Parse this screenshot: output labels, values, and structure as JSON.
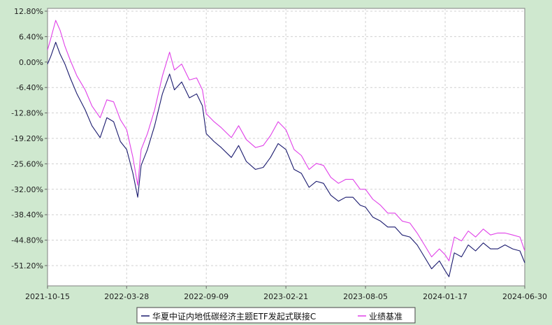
{
  "chart_data": {
    "type": "line",
    "title": "",
    "xlabel": "",
    "ylabel": "",
    "x_ticks": [
      "2021-10-15",
      "2022-03-28",
      "2022-09-09",
      "2023-02-21",
      "2023-08-05",
      "2024-01-17",
      "2024-06-30"
    ],
    "y_ticks": [
      "12.80%",
      "6.40%",
      "0.00%",
      "-6.40%",
      "-12.80%",
      "-19.20%",
      "-25.60%",
      "-32.00%",
      "-38.40%",
      "-44.80%",
      "-51.20%"
    ],
    "y_tick_values": [
      12.8,
      6.4,
      0.0,
      -6.4,
      -12.8,
      -19.2,
      -25.6,
      -32.0,
      -38.4,
      -44.8,
      -51.2
    ],
    "ylim": [
      -51.2,
      12.8
    ],
    "xlim": [
      "2021-10-15",
      "2024-06-30"
    ],
    "grid": true,
    "legend_position": "bottom-center",
    "colors": {
      "fund": "#1a1a6e",
      "benchmark": "#e040e8"
    },
    "series": [
      {
        "name": "华夏中证内地低碳经济主题ETF发起式联接C",
        "x": [
          "2021-10-15",
          "2021-10-22",
          "2021-11-01",
          "2021-11-10",
          "2021-11-20",
          "2021-12-01",
          "2021-12-15",
          "2022-01-01",
          "2022-01-15",
          "2022-02-01",
          "2022-02-15",
          "2022-03-01",
          "2022-03-15",
          "2022-03-28",
          "2022-04-10",
          "2022-04-20",
          "2022-04-27",
          "2022-05-10",
          "2022-05-25",
          "2022-06-10",
          "2022-06-25",
          "2022-07-05",
          "2022-07-20",
          "2022-08-05",
          "2022-08-20",
          "2022-09-01",
          "2022-09-09",
          "2022-09-25",
          "2022-10-10",
          "2022-10-31",
          "2022-11-15",
          "2022-12-01",
          "2022-12-20",
          "2023-01-05",
          "2023-01-20",
          "2023-02-05",
          "2023-02-21",
          "2023-03-10",
          "2023-03-25",
          "2023-04-10",
          "2023-04-25",
          "2023-05-10",
          "2023-05-25",
          "2023-06-10",
          "2023-06-25",
          "2023-07-10",
          "2023-07-25",
          "2023-08-05",
          "2023-08-20",
          "2023-09-05",
          "2023-09-20",
          "2023-10-05",
          "2023-10-20",
          "2023-11-05",
          "2023-11-20",
          "2023-12-05",
          "2023-12-20",
          "2024-01-05",
          "2024-01-17",
          "2024-01-25",
          "2024-02-05",
          "2024-02-20",
          "2024-03-05",
          "2024-03-20",
          "2024-04-05",
          "2024-04-20",
          "2024-05-05",
          "2024-05-20",
          "2024-06-05",
          "2024-06-20",
          "2024-06-30"
        ],
        "values": [
          -0.5,
          1.5,
          5.0,
          2.0,
          -0.5,
          -4.0,
          -8.0,
          -12.0,
          -16.0,
          -19.0,
          -14.0,
          -15.0,
          -20.0,
          -22.0,
          -28.0,
          -34.0,
          -26.0,
          -22.0,
          -16.0,
          -8.0,
          -3.0,
          -7.0,
          -5.0,
          -9.0,
          -8.0,
          -11.0,
          -18.0,
          -20.0,
          -21.5,
          -24.0,
          -21.0,
          -25.0,
          -27.0,
          -26.5,
          -24.0,
          -20.5,
          -22.0,
          -27.0,
          -28.0,
          -31.5,
          -30.0,
          -30.5,
          -33.5,
          -35.0,
          -34.0,
          -34.0,
          -36.0,
          -36.5,
          -39.0,
          -40.0,
          -41.5,
          -41.5,
          -43.5,
          -44.0,
          -46.0,
          -49.0,
          -52.0,
          -50.0,
          -52.5,
          -54.0,
          -48.0,
          -49.0,
          -46.0,
          -47.5,
          -45.5,
          -47.0,
          -47.0,
          -46.0,
          -47.0,
          -47.5,
          -50.5
        ]
      },
      {
        "name": "业绩基准",
        "x": [
          "2021-10-15",
          "2021-10-22",
          "2021-11-01",
          "2021-11-10",
          "2021-11-20",
          "2021-12-01",
          "2021-12-15",
          "2022-01-01",
          "2022-01-15",
          "2022-02-01",
          "2022-02-15",
          "2022-03-01",
          "2022-03-15",
          "2022-03-28",
          "2022-04-10",
          "2022-04-20",
          "2022-04-27",
          "2022-05-10",
          "2022-05-25",
          "2022-06-10",
          "2022-06-25",
          "2022-07-05",
          "2022-07-20",
          "2022-08-05",
          "2022-08-20",
          "2022-09-01",
          "2022-09-09",
          "2022-09-25",
          "2022-10-10",
          "2022-10-31",
          "2022-11-15",
          "2022-12-01",
          "2022-12-20",
          "2023-01-05",
          "2023-01-20",
          "2023-02-05",
          "2023-02-21",
          "2023-03-10",
          "2023-03-25",
          "2023-04-10",
          "2023-04-25",
          "2023-05-10",
          "2023-05-25",
          "2023-06-10",
          "2023-06-25",
          "2023-07-10",
          "2023-07-25",
          "2023-08-05",
          "2023-08-20",
          "2023-09-05",
          "2023-09-20",
          "2023-10-05",
          "2023-10-20",
          "2023-11-05",
          "2023-11-20",
          "2023-12-05",
          "2023-12-20",
          "2024-01-05",
          "2024-01-17",
          "2024-01-25",
          "2024-02-05",
          "2024-02-20",
          "2024-03-05",
          "2024-03-20",
          "2024-04-05",
          "2024-04-20",
          "2024-05-05",
          "2024-05-20",
          "2024-06-05",
          "2024-06-20",
          "2024-06-30"
        ],
        "values": [
          3.0,
          6.0,
          10.5,
          8.0,
          4.0,
          0.5,
          -3.5,
          -7.0,
          -11.0,
          -14.0,
          -9.5,
          -10.0,
          -14.5,
          -17.0,
          -24.0,
          -31.0,
          -22.0,
          -18.0,
          -12.0,
          -3.5,
          2.5,
          -2.0,
          -0.5,
          -4.5,
          -4.0,
          -7.0,
          -13.0,
          -15.0,
          -16.5,
          -19.0,
          -16.0,
          -19.5,
          -21.5,
          -21.0,
          -18.5,
          -15.0,
          -17.0,
          -22.0,
          -23.5,
          -27.0,
          -25.5,
          -26.0,
          -29.0,
          -30.5,
          -29.5,
          -29.5,
          -32.0,
          -32.0,
          -34.5,
          -36.0,
          -38.0,
          -38.0,
          -40.0,
          -40.5,
          -43.0,
          -46.0,
          -49.0,
          -47.0,
          -48.5,
          -50.0,
          -44.0,
          -45.0,
          -42.5,
          -44.0,
          -42.0,
          -43.5,
          -43.0,
          -43.0,
          -43.5,
          -44.0,
          -47.5
        ]
      }
    ]
  }
}
